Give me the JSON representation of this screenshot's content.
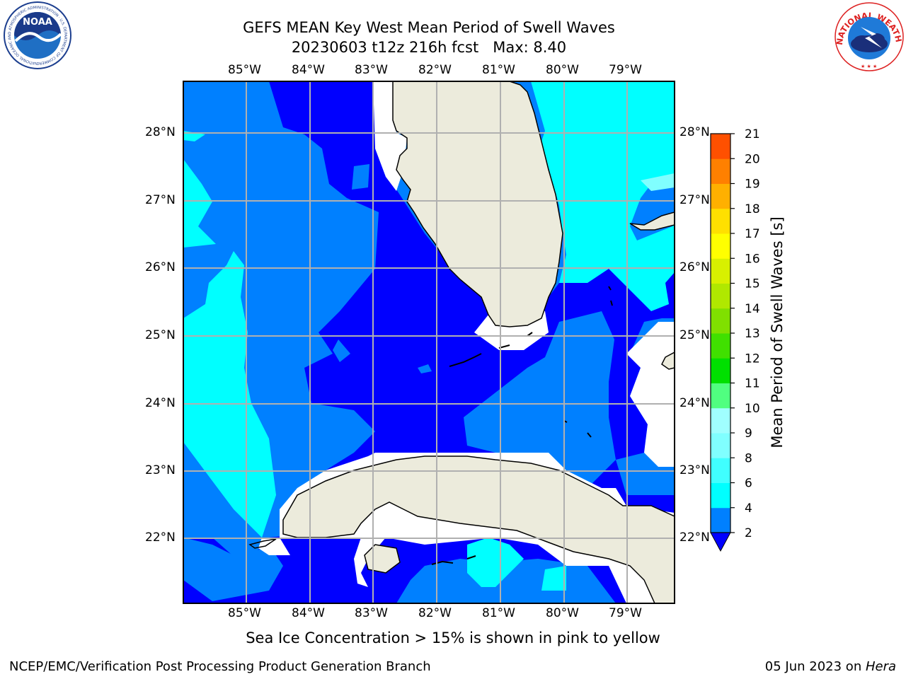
{
  "header": {
    "title_line1": "GEFS MEAN Key West Mean Period of Swell Waves",
    "title_line2": "20230603 t12z 216h fcst   Max: 8.40"
  },
  "logos": {
    "noaa_text": "NOAA",
    "noaa_ring_text": "NATIONAL OCEANIC AND ATMOSPHERIC ADMINISTRATION · U.S. DEPARTMENT OF COMMERCE",
    "nws_ring_text": "NATIONAL WEATHER SERVICE"
  },
  "map": {
    "lon_labels": [
      "85°W",
      "84°W",
      "83°W",
      "82°W",
      "81°W",
      "80°W",
      "79°W"
    ],
    "lat_labels": [
      "28°N",
      "27°N",
      "26°N",
      "25°N",
      "24°N",
      "23°N",
      "22°N"
    ]
  },
  "colorbar": {
    "label": "Mean Period of Swell Waves [s]",
    "ticks": [
      "2",
      "4",
      "6",
      "8",
      "9",
      "10",
      "11",
      "12",
      "13",
      "14",
      "15",
      "16",
      "17",
      "18",
      "19",
      "20",
      "21"
    ],
    "colors": [
      "#0080ff",
      "#00ffff",
      "#40ffff",
      "#80ffff",
      "#a0ffff",
      "#50ff80",
      "#00e000",
      "#40e000",
      "#80e000",
      "#b0e800",
      "#d8f000",
      "#ffff00",
      "#ffe000",
      "#ffb000",
      "#ff8000",
      "#ff5000",
      "#ff2000",
      "#ff0000"
    ],
    "under_color": "#0000ff"
  },
  "note": "Sea Ice Concentration > 15% is shown in pink to yellow",
  "footer": {
    "left": "NCEP/EMC/Verification Post Processing Product Generation Branch",
    "date": "05 Jun 2023 on ",
    "host": "Hera"
  }
}
